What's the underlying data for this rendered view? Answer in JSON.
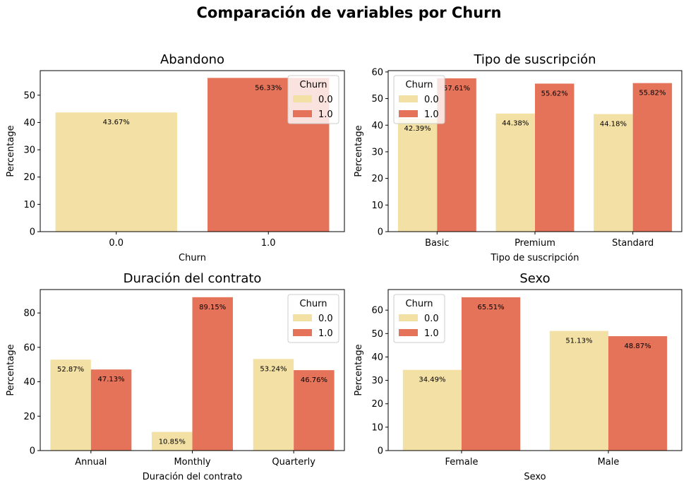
{
  "figure": {
    "suptitle": "Comparación de variables por Churn"
  },
  "colors": {
    "series_0": "#f3e0a5",
    "series_1": "#e5735a"
  },
  "chart_data": [
    {
      "type": "bar",
      "title": "Abandono",
      "xlabel": "Churn",
      "ylabel": "Percentage",
      "categories": [
        "0.0",
        "1.0"
      ],
      "grouped": false,
      "ylim": [
        0,
        59
      ],
      "yticks": [
        0,
        10,
        20,
        30,
        40,
        50
      ],
      "legend": {
        "title": "Churn",
        "entries": [
          "0.0",
          "1.0"
        ],
        "placement": "top-right"
      },
      "series": [
        {
          "name": "0.0",
          "values": [
            43.67,
            null
          ],
          "labels": [
            "43.67%",
            null
          ]
        },
        {
          "name": "1.0",
          "values": [
            null,
            56.33
          ],
          "labels": [
            null,
            "56.33%"
          ]
        }
      ],
      "grid": false
    },
    {
      "type": "bar",
      "title": "Tipo de suscripción",
      "xlabel": "Tipo de suscripción",
      "ylabel": "Percentage",
      "categories": [
        "Basic",
        "Premium",
        "Standard"
      ],
      "grouped": true,
      "ylim": [
        0,
        60.5
      ],
      "yticks": [
        0,
        10,
        20,
        30,
        40,
        50,
        60
      ],
      "legend": {
        "title": "Churn",
        "entries": [
          "0.0",
          "1.0"
        ],
        "placement": "top-left"
      },
      "series": [
        {
          "name": "0.0",
          "values": [
            42.39,
            44.38,
            44.18
          ],
          "labels": [
            "42.39%",
            "44.38%",
            "44.18%"
          ]
        },
        {
          "name": "1.0",
          "values": [
            57.61,
            55.62,
            55.82
          ],
          "labels": [
            "57.61%",
            "55.62%",
            "55.82%"
          ]
        }
      ],
      "grid": false
    },
    {
      "type": "bar",
      "title": "Duración del contrato",
      "xlabel": "Duración del contrato",
      "ylabel": "Percentage",
      "categories": [
        "Annual",
        "Monthly",
        "Quarterly"
      ],
      "grouped": true,
      "ylim": [
        0,
        93.6
      ],
      "yticks": [
        0,
        20,
        40,
        60,
        80
      ],
      "legend": {
        "title": "Churn",
        "entries": [
          "0.0",
          "1.0"
        ],
        "placement": "top-right"
      },
      "series": [
        {
          "name": "0.0",
          "values": [
            52.87,
            10.85,
            53.24
          ],
          "labels": [
            "52.87%",
            "10.85%",
            "53.24%"
          ]
        },
        {
          "name": "1.0",
          "values": [
            47.13,
            89.15,
            46.76
          ],
          "labels": [
            "47.13%",
            "89.15%",
            "46.76%"
          ]
        }
      ],
      "grid": false
    },
    {
      "type": "bar",
      "title": "Sexo",
      "xlabel": "Sexo",
      "ylabel": "Percentage",
      "categories": [
        "Female",
        "Male"
      ],
      "grouped": true,
      "ylim": [
        0,
        68.8
      ],
      "yticks": [
        0,
        10,
        20,
        30,
        40,
        50,
        60
      ],
      "legend": {
        "title": "Churn",
        "entries": [
          "0.0",
          "1.0"
        ],
        "placement": "top-left"
      },
      "series": [
        {
          "name": "0.0",
          "values": [
            34.49,
            51.13
          ],
          "labels": [
            "34.49%",
            "51.13%"
          ]
        },
        {
          "name": "1.0",
          "values": [
            65.51,
            48.87
          ],
          "labels": [
            "65.51%",
            "48.87%"
          ]
        }
      ],
      "grid": false
    }
  ]
}
